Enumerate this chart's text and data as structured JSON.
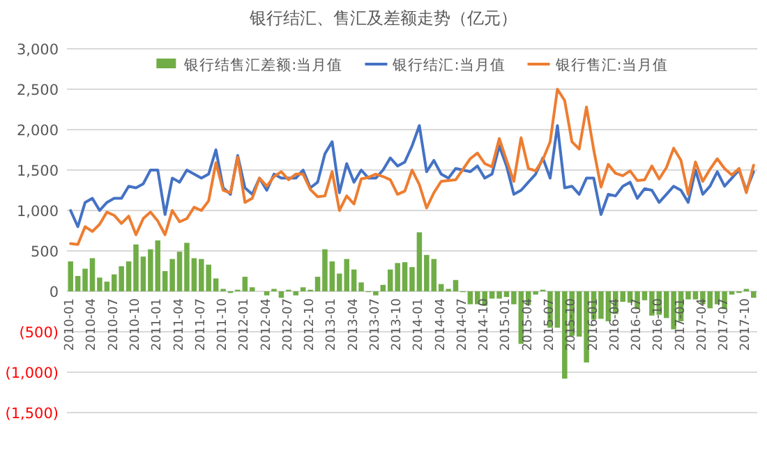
{
  "chart_data": {
    "type": "bar",
    "title": "银行结汇、售汇及差额走势（亿元）",
    "categories": [
      "2010-01",
      null,
      null,
      "2010-04",
      null,
      null,
      "2010-07",
      null,
      null,
      "2010-10",
      null,
      null,
      "2011-01",
      null,
      null,
      "2011-04",
      null,
      null,
      "2011-07",
      null,
      null,
      "2011-10",
      null,
      null,
      "2012-01",
      null,
      null,
      "2012-04",
      null,
      null,
      "2012-07",
      null,
      null,
      "2012-10",
      null,
      null,
      "2013-01",
      null,
      null,
      "2013-04",
      null,
      null,
      "2013-07",
      null,
      null,
      "2013-10",
      null,
      null,
      "2014-01",
      null,
      null,
      "2014-04",
      null,
      null,
      "2014-07",
      null,
      null,
      "2014-10",
      null,
      null,
      "2015-01",
      null,
      null,
      "2015-04",
      null,
      null,
      "2015-07",
      null,
      null,
      "2015-10",
      null,
      null,
      "2016-01",
      null,
      null,
      "2016-04",
      null,
      null,
      "2016-07",
      null,
      null,
      "2016-10",
      null,
      null,
      "2017-01",
      null,
      null,
      "2017-04",
      null,
      null,
      "2017-07",
      null,
      null,
      "2017-10",
      null
    ],
    "series": [
      {
        "name": "银行结售汇差额:当月值",
        "color": "#70ad47",
        "values": [
          370,
          190,
          280,
          410,
          170,
          120,
          210,
          310,
          370,
          580,
          430,
          520,
          630,
          250,
          400,
          490,
          600,
          410,
          400,
          330,
          160,
          30,
          -20,
          20,
          180,
          50,
          0,
          -50,
          30,
          -80,
          20,
          -50,
          50,
          20,
          180,
          520,
          370,
          220,
          400,
          270,
          110,
          -10,
          -50,
          80,
          270,
          350,
          360,
          300,
          730,
          450,
          400,
          90,
          30,
          140,
          -10,
          -160,
          -160,
          -180,
          -90,
          -90,
          -70,
          -160,
          -650,
          -170,
          -40,
          20,
          -450,
          -450,
          -1080,
          -550,
          -560,
          -880,
          -350,
          -340,
          -370,
          -280,
          -130,
          -140,
          -220,
          -110,
          -300,
          -290,
          -330,
          -470,
          -370,
          -100,
          -100,
          -160,
          -210,
          -160,
          -220,
          -40,
          -20,
          30,
          -80
        ]
      },
      {
        "name": "银行结汇:当月值",
        "type": "line",
        "color": "#4472c4",
        "values": [
          1000,
          800,
          1100,
          1150,
          1000,
          1100,
          1150,
          1150,
          1300,
          1280,
          1330,
          1500,
          1500,
          950,
          1400,
          1350,
          1500,
          1450,
          1400,
          1450,
          1750,
          1280,
          1200,
          1680,
          1280,
          1200,
          1400,
          1250,
          1450,
          1400,
          1400,
          1400,
          1500,
          1280,
          1350,
          1700,
          1850,
          1220,
          1580,
          1350,
          1500,
          1400,
          1400,
          1500,
          1650,
          1550,
          1600,
          1800,
          2050,
          1480,
          1620,
          1450,
          1400,
          1520,
          1500,
          1480,
          1550,
          1400,
          1450,
          1800,
          1550,
          1200,
          1250,
          1350,
          1450,
          1650,
          1400,
          2050,
          1280,
          1300,
          1200,
          1400,
          1400,
          950,
          1200,
          1180,
          1300,
          1350,
          1150,
          1270,
          1250,
          1100,
          1200,
          1300,
          1250,
          1100,
          1500,
          1200,
          1300,
          1480,
          1300,
          1400,
          1500,
          1250,
          1480
        ]
      },
      {
        "name": "银行售汇:当月值",
        "type": "line",
        "color": "#ed7d31",
        "values": [
          590,
          580,
          800,
          740,
          830,
          980,
          940,
          840,
          930,
          700,
          900,
          980,
          870,
          700,
          1000,
          860,
          900,
          1040,
          1000,
          1120,
          1590,
          1250,
          1220,
          1660,
          1100,
          1150,
          1400,
          1300,
          1420,
          1480,
          1380,
          1450,
          1450,
          1260,
          1170,
          1180,
          1480,
          1000,
          1180,
          1080,
          1390,
          1410,
          1450,
          1420,
          1380,
          1200,
          1240,
          1500,
          1320,
          1030,
          1220,
          1360,
          1370,
          1380,
          1510,
          1640,
          1710,
          1580,
          1540,
          1890,
          1620,
          1360,
          1900,
          1520,
          1490,
          1630,
          1850,
          2500,
          2360,
          1850,
          1760,
          2280,
          1750,
          1290,
          1570,
          1460,
          1430,
          1490,
          1370,
          1380,
          1550,
          1390,
          1530,
          1770,
          1620,
          1200,
          1600,
          1360,
          1510,
          1640,
          1520,
          1440,
          1520,
          1220,
          1560
        ]
      }
    ],
    "ylim": [
      -1500,
      3000
    ],
    "yticks": [
      {
        "value": 3000,
        "label": "3,000"
      },
      {
        "value": 2500,
        "label": "2,500"
      },
      {
        "value": 2000,
        "label": "2,000"
      },
      {
        "value": 1500,
        "label": "1,500"
      },
      {
        "value": 1000,
        "label": "1,000"
      },
      {
        "value": 500,
        "label": "500"
      },
      0,
      {
        "value": -500,
        "label": "(500)"
      },
      {
        "value": -1000,
        "label": "(1,000)"
      },
      {
        "value": -1500,
        "label": "(1,500)"
      }
    ],
    "grid": "y",
    "legend": "top"
  }
}
